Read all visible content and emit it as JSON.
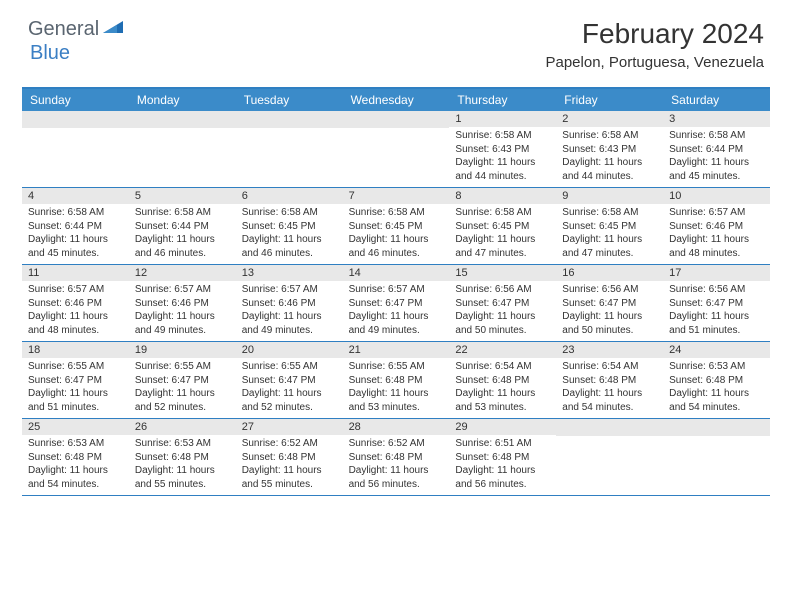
{
  "logo": {
    "general": "General",
    "blue": "Blue"
  },
  "title": "February 2024",
  "location": "Papelon, Portuguesa, Venezuela",
  "colors": {
    "header_bg": "#3b8bc9",
    "border": "#2f7fc2",
    "day_number_bg": "#e8e8e8",
    "text": "#333333",
    "logo_gray": "#5a6570",
    "logo_blue": "#3b7fc4"
  },
  "day_headers": [
    "Sunday",
    "Monday",
    "Tuesday",
    "Wednesday",
    "Thursday",
    "Friday",
    "Saturday"
  ],
  "weeks": [
    [
      {
        "n": "",
        "sunrise": "",
        "sunset": "",
        "daylight": ""
      },
      {
        "n": "",
        "sunrise": "",
        "sunset": "",
        "daylight": ""
      },
      {
        "n": "",
        "sunrise": "",
        "sunset": "",
        "daylight": ""
      },
      {
        "n": "",
        "sunrise": "",
        "sunset": "",
        "daylight": ""
      },
      {
        "n": "1",
        "sunrise": "Sunrise: 6:58 AM",
        "sunset": "Sunset: 6:43 PM",
        "daylight": "Daylight: 11 hours and 44 minutes."
      },
      {
        "n": "2",
        "sunrise": "Sunrise: 6:58 AM",
        "sunset": "Sunset: 6:43 PM",
        "daylight": "Daylight: 11 hours and 44 minutes."
      },
      {
        "n": "3",
        "sunrise": "Sunrise: 6:58 AM",
        "sunset": "Sunset: 6:44 PM",
        "daylight": "Daylight: 11 hours and 45 minutes."
      }
    ],
    [
      {
        "n": "4",
        "sunrise": "Sunrise: 6:58 AM",
        "sunset": "Sunset: 6:44 PM",
        "daylight": "Daylight: 11 hours and 45 minutes."
      },
      {
        "n": "5",
        "sunrise": "Sunrise: 6:58 AM",
        "sunset": "Sunset: 6:44 PM",
        "daylight": "Daylight: 11 hours and 46 minutes."
      },
      {
        "n": "6",
        "sunrise": "Sunrise: 6:58 AM",
        "sunset": "Sunset: 6:45 PM",
        "daylight": "Daylight: 11 hours and 46 minutes."
      },
      {
        "n": "7",
        "sunrise": "Sunrise: 6:58 AM",
        "sunset": "Sunset: 6:45 PM",
        "daylight": "Daylight: 11 hours and 46 minutes."
      },
      {
        "n": "8",
        "sunrise": "Sunrise: 6:58 AM",
        "sunset": "Sunset: 6:45 PM",
        "daylight": "Daylight: 11 hours and 47 minutes."
      },
      {
        "n": "9",
        "sunrise": "Sunrise: 6:58 AM",
        "sunset": "Sunset: 6:45 PM",
        "daylight": "Daylight: 11 hours and 47 minutes."
      },
      {
        "n": "10",
        "sunrise": "Sunrise: 6:57 AM",
        "sunset": "Sunset: 6:46 PM",
        "daylight": "Daylight: 11 hours and 48 minutes."
      }
    ],
    [
      {
        "n": "11",
        "sunrise": "Sunrise: 6:57 AM",
        "sunset": "Sunset: 6:46 PM",
        "daylight": "Daylight: 11 hours and 48 minutes."
      },
      {
        "n": "12",
        "sunrise": "Sunrise: 6:57 AM",
        "sunset": "Sunset: 6:46 PM",
        "daylight": "Daylight: 11 hours and 49 minutes."
      },
      {
        "n": "13",
        "sunrise": "Sunrise: 6:57 AM",
        "sunset": "Sunset: 6:46 PM",
        "daylight": "Daylight: 11 hours and 49 minutes."
      },
      {
        "n": "14",
        "sunrise": "Sunrise: 6:57 AM",
        "sunset": "Sunset: 6:47 PM",
        "daylight": "Daylight: 11 hours and 49 minutes."
      },
      {
        "n": "15",
        "sunrise": "Sunrise: 6:56 AM",
        "sunset": "Sunset: 6:47 PM",
        "daylight": "Daylight: 11 hours and 50 minutes."
      },
      {
        "n": "16",
        "sunrise": "Sunrise: 6:56 AM",
        "sunset": "Sunset: 6:47 PM",
        "daylight": "Daylight: 11 hours and 50 minutes."
      },
      {
        "n": "17",
        "sunrise": "Sunrise: 6:56 AM",
        "sunset": "Sunset: 6:47 PM",
        "daylight": "Daylight: 11 hours and 51 minutes."
      }
    ],
    [
      {
        "n": "18",
        "sunrise": "Sunrise: 6:55 AM",
        "sunset": "Sunset: 6:47 PM",
        "daylight": "Daylight: 11 hours and 51 minutes."
      },
      {
        "n": "19",
        "sunrise": "Sunrise: 6:55 AM",
        "sunset": "Sunset: 6:47 PM",
        "daylight": "Daylight: 11 hours and 52 minutes."
      },
      {
        "n": "20",
        "sunrise": "Sunrise: 6:55 AM",
        "sunset": "Sunset: 6:47 PM",
        "daylight": "Daylight: 11 hours and 52 minutes."
      },
      {
        "n": "21",
        "sunrise": "Sunrise: 6:55 AM",
        "sunset": "Sunset: 6:48 PM",
        "daylight": "Daylight: 11 hours and 53 minutes."
      },
      {
        "n": "22",
        "sunrise": "Sunrise: 6:54 AM",
        "sunset": "Sunset: 6:48 PM",
        "daylight": "Daylight: 11 hours and 53 minutes."
      },
      {
        "n": "23",
        "sunrise": "Sunrise: 6:54 AM",
        "sunset": "Sunset: 6:48 PM",
        "daylight": "Daylight: 11 hours and 54 minutes."
      },
      {
        "n": "24",
        "sunrise": "Sunrise: 6:53 AM",
        "sunset": "Sunset: 6:48 PM",
        "daylight": "Daylight: 11 hours and 54 minutes."
      }
    ],
    [
      {
        "n": "25",
        "sunrise": "Sunrise: 6:53 AM",
        "sunset": "Sunset: 6:48 PM",
        "daylight": "Daylight: 11 hours and 54 minutes."
      },
      {
        "n": "26",
        "sunrise": "Sunrise: 6:53 AM",
        "sunset": "Sunset: 6:48 PM",
        "daylight": "Daylight: 11 hours and 55 minutes."
      },
      {
        "n": "27",
        "sunrise": "Sunrise: 6:52 AM",
        "sunset": "Sunset: 6:48 PM",
        "daylight": "Daylight: 11 hours and 55 minutes."
      },
      {
        "n": "28",
        "sunrise": "Sunrise: 6:52 AM",
        "sunset": "Sunset: 6:48 PM",
        "daylight": "Daylight: 11 hours and 56 minutes."
      },
      {
        "n": "29",
        "sunrise": "Sunrise: 6:51 AM",
        "sunset": "Sunset: 6:48 PM",
        "daylight": "Daylight: 11 hours and 56 minutes."
      },
      {
        "n": "",
        "sunrise": "",
        "sunset": "",
        "daylight": ""
      },
      {
        "n": "",
        "sunrise": "",
        "sunset": "",
        "daylight": ""
      }
    ]
  ]
}
